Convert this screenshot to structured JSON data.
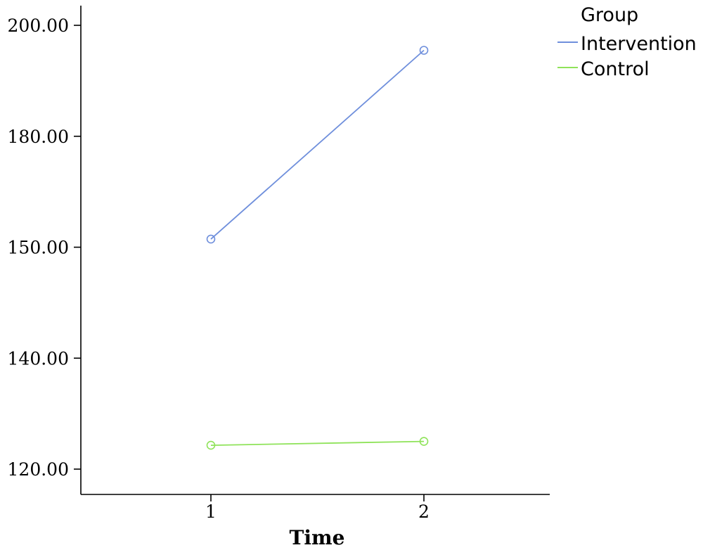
{
  "chart_data": {
    "type": "line",
    "xlabel": "Time",
    "ylabel": "",
    "categories": [
      "1",
      "2"
    ],
    "yticks": [
      "120.00",
      "140.00",
      "150.00",
      "180.00",
      "200.00"
    ],
    "series": [
      {
        "name": "Intervention",
        "color": "#6f8fdc",
        "values": [
          152.2,
          195.5
        ]
      },
      {
        "name": "Control",
        "color": "#8fe35a",
        "values": [
          124.3,
          125.0
        ]
      }
    ],
    "legend": {
      "title": "Group",
      "position": "top-right"
    },
    "marker": "open-circle",
    "grid": false
  }
}
